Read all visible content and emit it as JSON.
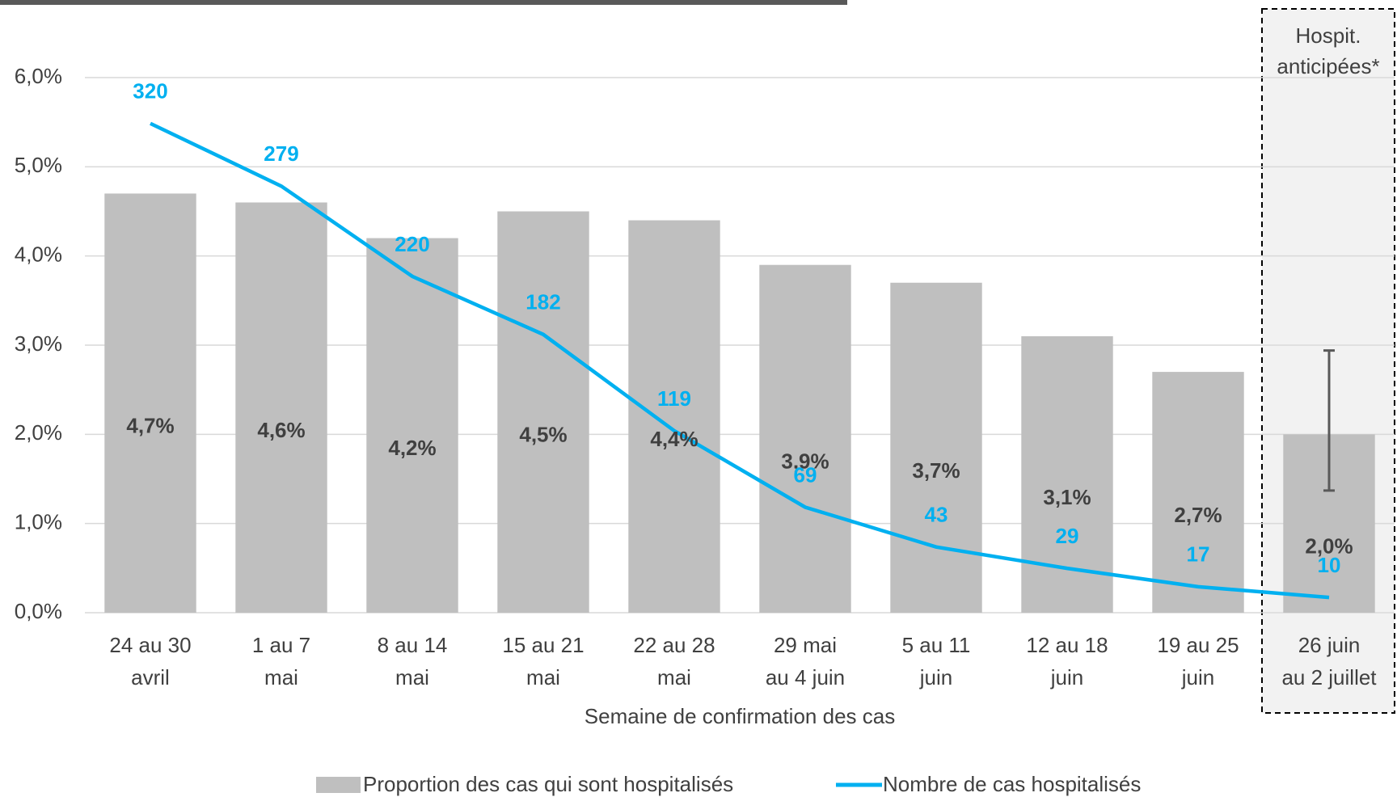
{
  "chart_data": {
    "type": "bar_line",
    "categories": [
      [
        "24 au 30",
        "avril"
      ],
      [
        "1 au 7",
        "mai"
      ],
      [
        "8 au 14",
        "mai"
      ],
      [
        "15 au 21",
        "mai"
      ],
      [
        "22 au 28",
        "mai"
      ],
      [
        "29 mai",
        "au 4 juin"
      ],
      [
        "5 au 11",
        "juin"
      ],
      [
        "12 au 18",
        "juin"
      ],
      [
        "19 au 25",
        "juin"
      ],
      [
        "26 juin",
        "au 2 juillet"
      ]
    ],
    "x_label": "Semaine de confirmation des cas",
    "annotation": [
      "Hospit.",
      "anticipées*"
    ],
    "series": [
      {
        "name": "Proportion des cas qui sont hospitalisés",
        "type": "bar",
        "color": "#bfbfbf",
        "values": [
          4.7,
          4.6,
          4.2,
          4.5,
          4.4,
          3.9,
          3.7,
          3.1,
          2.7,
          2.0
        ],
        "value_labels": [
          "4,7%",
          "4,6%",
          "4,2%",
          "4,5%",
          "4,4%",
          "3,9%",
          "3,7%",
          "3,1%",
          "2,7%",
          "2,0%"
        ],
        "error_low": [
          null,
          null,
          null,
          null,
          null,
          null,
          null,
          null,
          null,
          1.37
        ],
        "error_high": [
          null,
          null,
          null,
          null,
          null,
          null,
          null,
          null,
          null,
          2.94
        ]
      },
      {
        "name": "Nombre de cas hospitalisés",
        "type": "line",
        "axis": "y2",
        "color": "#00b0f0",
        "values": [
          320,
          279,
          220,
          182,
          119,
          69,
          43,
          29,
          17,
          10
        ]
      }
    ],
    "ylim": [
      0,
      6
    ],
    "yticks": [
      {
        "value": 0,
        "label": "0,0%"
      },
      {
        "value": 1,
        "label": "1,0%"
      },
      {
        "value": 2,
        "label": "2,0%"
      },
      {
        "value": 3,
        "label": "3,0%"
      },
      {
        "value": 4,
        "label": "4,0%"
      },
      {
        "value": 5,
        "label": "5,0%"
      },
      {
        "value": 6,
        "label": "6,0%"
      }
    ],
    "y2lim": [
      0,
      350
    ],
    "grid": true
  }
}
